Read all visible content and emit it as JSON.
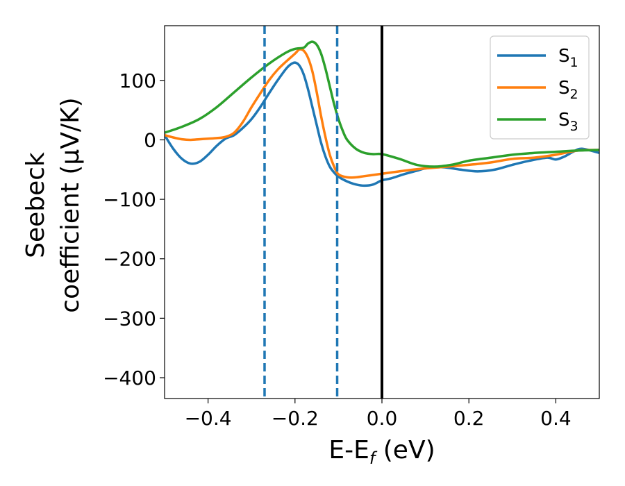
{
  "chart_data": {
    "type": "line",
    "xlabel": {
      "main": "E-E",
      "sub": "f",
      "suffix": " (eV)"
    },
    "ylabel": {
      "line1": "Seebeck",
      "line2": "coefficient  (μV/K)"
    },
    "xlim": [
      -0.5,
      0.5
    ],
    "ylim": [
      -435,
      192
    ],
    "xticks": [
      -0.4,
      -0.2,
      0.0,
      0.2,
      0.4
    ],
    "xtick_labels": [
      "−0.4",
      "−0.2",
      "0.0",
      "0.2",
      "0.4"
    ],
    "yticks": [
      100,
      0,
      -100,
      -200,
      -300,
      -400
    ],
    "ytick_labels": [
      "100",
      "0",
      "−100",
      "−200",
      "−300",
      "−400"
    ],
    "legend_position": "top-right",
    "vlines": [
      {
        "x": -0.27,
        "style": "dashed",
        "color": "#1f77b4"
      },
      {
        "x": -0.103,
        "style": "dashed",
        "color": "#1f77b4"
      },
      {
        "x": 0.0,
        "style": "solid",
        "color": "#000000"
      }
    ],
    "series": [
      {
        "name": "S",
        "sub": "1",
        "color": "#1f77b4",
        "x": [
          -0.5,
          -0.48,
          -0.46,
          -0.44,
          -0.42,
          -0.4,
          -0.38,
          -0.36,
          -0.34,
          -0.32,
          -0.3,
          -0.28,
          -0.26,
          -0.24,
          -0.22,
          -0.21,
          -0.2,
          -0.19,
          -0.18,
          -0.17,
          -0.16,
          -0.15,
          -0.14,
          -0.13,
          -0.12,
          -0.11,
          -0.1,
          -0.08,
          -0.06,
          -0.04,
          -0.02,
          0.0,
          0.02,
          0.05,
          0.08,
          0.1,
          0.14,
          0.18,
          0.22,
          0.26,
          0.3,
          0.34,
          0.38,
          0.4,
          0.42,
          0.44,
          0.46,
          0.5
        ],
        "y": [
          8,
          -15,
          -32,
          -40,
          -37,
          -25,
          -10,
          2,
          8,
          20,
          35,
          55,
          78,
          100,
          120,
          127,
          130,
          125,
          110,
          85,
          55,
          25,
          -5,
          -28,
          -45,
          -55,
          -62,
          -70,
          -75,
          -77,
          -75,
          -68,
          -65,
          -58,
          -52,
          -48,
          -46,
          -50,
          -53,
          -50,
          -42,
          -35,
          -30,
          -33,
          -28,
          -20,
          -15,
          -22
        ]
      },
      {
        "name": "S",
        "sub": "2",
        "color": "#ff7f0e",
        "x": [
          -0.5,
          -0.48,
          -0.46,
          -0.44,
          -0.42,
          -0.4,
          -0.38,
          -0.36,
          -0.34,
          -0.32,
          -0.3,
          -0.28,
          -0.26,
          -0.24,
          -0.22,
          -0.2,
          -0.19,
          -0.18,
          -0.17,
          -0.16,
          -0.15,
          -0.14,
          -0.13,
          -0.12,
          -0.11,
          -0.1,
          -0.08,
          -0.06,
          -0.04,
          0.0,
          0.05,
          0.1,
          0.15,
          0.2,
          0.25,
          0.3,
          0.35,
          0.4,
          0.45,
          0.5
        ],
        "y": [
          8,
          4,
          1,
          0,
          1,
          2,
          3,
          5,
          12,
          30,
          55,
          78,
          100,
          118,
          132,
          145,
          152,
          150,
          138,
          115,
          80,
          40,
          5,
          -25,
          -45,
          -58,
          -63,
          -63,
          -61,
          -57,
          -52,
          -48,
          -45,
          -42,
          -38,
          -32,
          -30,
          -25,
          -18,
          -17
        ]
      },
      {
        "name": "S",
        "sub": "3",
        "color": "#2ca02c",
        "x": [
          -0.5,
          -0.46,
          -0.42,
          -0.38,
          -0.34,
          -0.3,
          -0.26,
          -0.22,
          -0.2,
          -0.18,
          -0.17,
          -0.16,
          -0.15,
          -0.14,
          -0.13,
          -0.12,
          -0.11,
          -0.1,
          -0.09,
          -0.08,
          -0.06,
          -0.04,
          -0.02,
          0.0,
          0.04,
          0.08,
          0.12,
          0.16,
          0.2,
          0.25,
          0.3,
          0.35,
          0.4,
          0.45,
          0.5
        ],
        "y": [
          12,
          22,
          35,
          55,
          80,
          105,
          128,
          147,
          153,
          155,
          162,
          165,
          160,
          145,
          120,
          90,
          60,
          35,
          15,
          0,
          -15,
          -22,
          -24,
          -24,
          -32,
          -42,
          -45,
          -42,
          -35,
          -30,
          -25,
          -22,
          -20,
          -18,
          -17
        ]
      }
    ]
  }
}
